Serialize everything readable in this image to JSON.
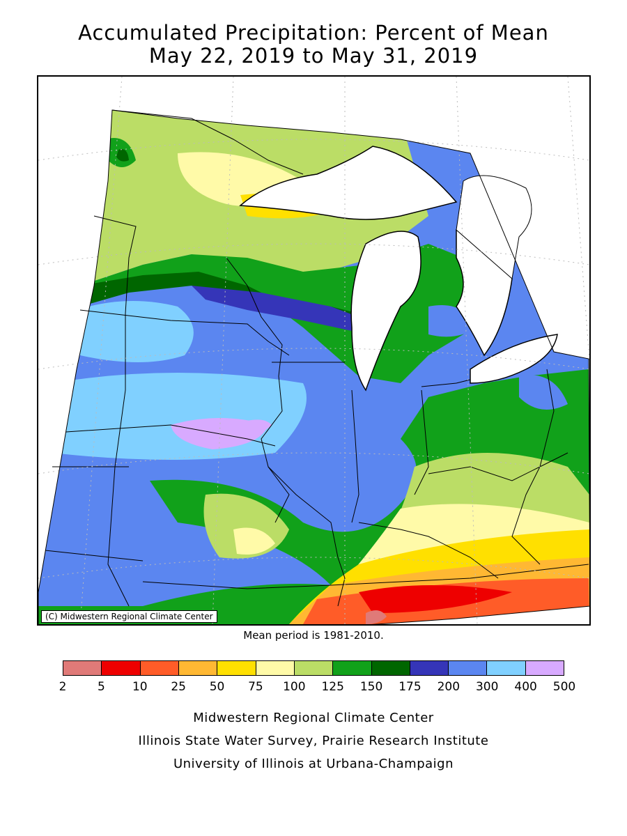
{
  "title": {
    "line1": "Accumulated Precipitation: Percent of Mean",
    "line2": "May 22, 2019 to May 31, 2019"
  },
  "map": {
    "copyright": "(C) Midwestern Regional Climate Center",
    "mean_note": "Mean period is 1981-2010."
  },
  "legend": {
    "colors": [
      "#e07a78",
      "#ee0000",
      "#ff5c28",
      "#ffb833",
      "#ffe000",
      "#fffaa8",
      "#bbdd66",
      "#11a11a",
      "#006600",
      "#3535b8",
      "#5b86f0",
      "#80d0ff",
      "#d8aaff"
    ],
    "ticks": [
      "2",
      "5",
      "10",
      "25",
      "50",
      "75",
      "100",
      "125",
      "150",
      "175",
      "200",
      "300",
      "400",
      "500"
    ]
  },
  "credits": {
    "line1": "Midwestern Regional Climate Center",
    "line2": "Illinois State Water Survey, Prairie Research Institute",
    "line3": "University of Illinois at Urbana-Champaign"
  }
}
